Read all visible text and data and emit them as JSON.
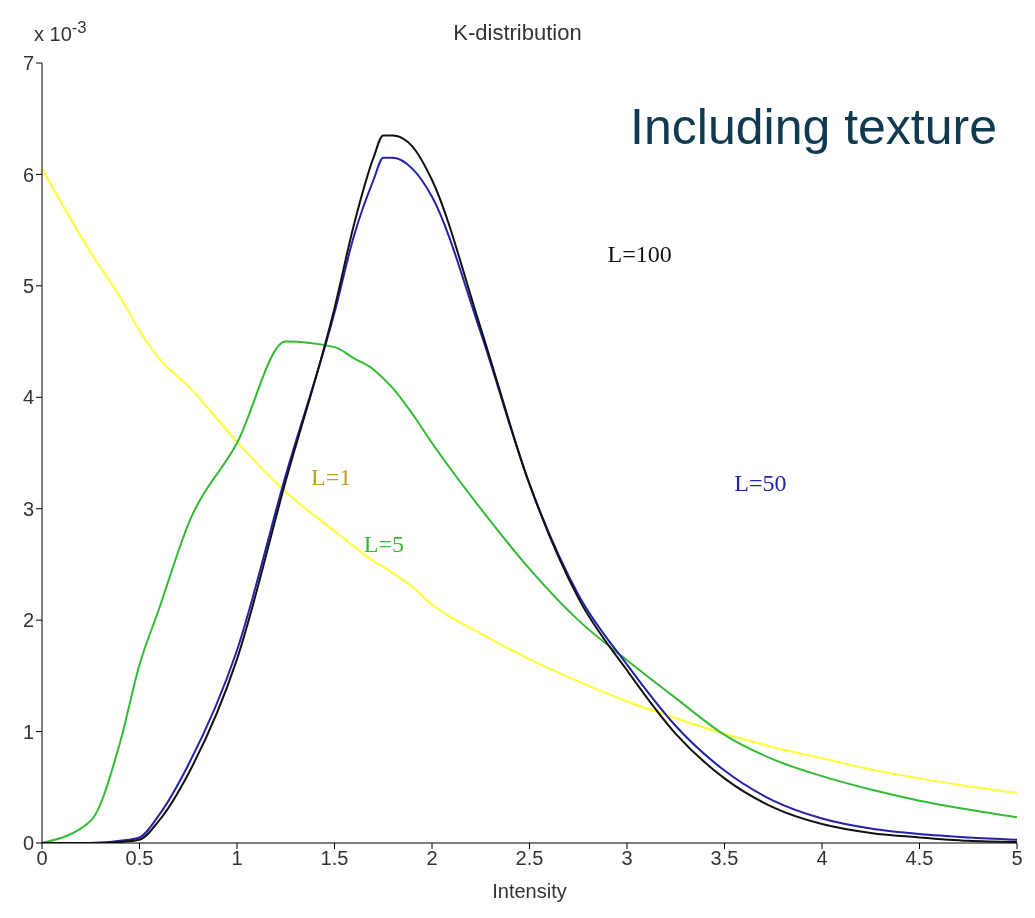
{
  "chart_data": {
    "type": "line",
    "title": "K-distribution",
    "xlabel": "Intensity",
    "annotations": [
      "x 10$^{-3}$",
      "Including texture"
    ],
    "x": [
      0,
      0.25,
      0.4,
      0.5,
      0.6,
      0.75,
      1,
      1.25,
      1.5,
      1.6,
      1.7,
      1.75,
      1.8,
      1.9,
      2,
      2.25,
      2.5,
      2.75,
      3,
      3.25,
      3.5,
      3.75,
      4,
      4.25,
      4.5,
      4.75,
      5
    ],
    "series": [
      {
        "name": "L=1",
        "color": "#ffff33",
        "values": [
          6.05,
          5.3,
          4.9,
          4.6,
          4.35,
          4.1,
          3.6,
          3.15,
          2.8,
          2.66,
          2.53,
          2.48,
          2.42,
          2.3,
          2.14,
          1.88,
          1.65,
          1.45,
          1.27,
          1.12,
          0.98,
          0.86,
          0.76,
          0.66,
          0.58,
          0.51,
          0.45
        ]
      },
      {
        "name": "L=5",
        "color": "#33bb33",
        "values": [
          0,
          0.2,
          0.9,
          1.6,
          2.1,
          2.86,
          3.59,
          4.5,
          4.45,
          4.35,
          4.25,
          4.17,
          4.08,
          3.85,
          3.59,
          3.0,
          2.46,
          2.0,
          1.64,
          1.3,
          0.97,
          0.75,
          0.6,
          0.48,
          0.38,
          0.3,
          0.23
        ]
      },
      {
        "name": "L=50",
        "color": "#2222aa",
        "values": [
          0,
          0,
          0.02,
          0.05,
          0.25,
          0.7,
          1.73,
          3.3,
          4.76,
          5.45,
          5.95,
          6.15,
          6.15,
          6.05,
          5.8,
          4.58,
          3.22,
          2.23,
          1.6,
          1.05,
          0.65,
          0.38,
          0.22,
          0.13,
          0.08,
          0.05,
          0.03
        ]
      },
      {
        "name": "L=100",
        "color": "#111111",
        "values": [
          0,
          0,
          0.01,
          0.03,
          0.2,
          0.62,
          1.65,
          3.25,
          4.8,
          5.55,
          6.15,
          6.35,
          6.35,
          6.25,
          5.95,
          4.62,
          3.22,
          2.2,
          1.55,
          0.98,
          0.58,
          0.32,
          0.17,
          0.09,
          0.05,
          0.02,
          0.01
        ]
      }
    ],
    "xlim": [
      0,
      5
    ],
    "xticks": [
      0,
      0.5,
      1,
      1.5,
      2,
      2.5,
      3,
      3.5,
      4,
      4.5,
      5
    ],
    "ylim": [
      0,
      7
    ],
    "yticks": [
      0,
      1,
      2,
      3,
      4,
      5,
      6,
      7
    ],
    "grid": false,
    "legend": false,
    "marker": "none",
    "line_style": "solid"
  }
}
